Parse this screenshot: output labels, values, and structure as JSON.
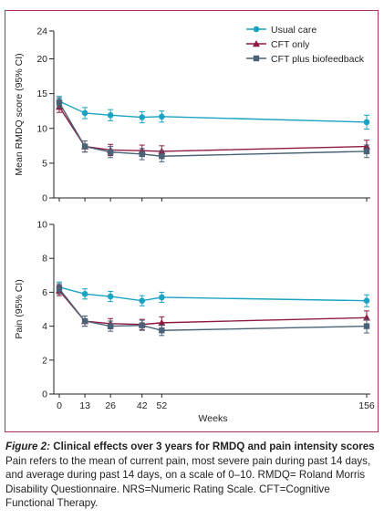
{
  "chart_data": [
    {
      "type": "line",
      "ylabel": "Mean RMDQ score (95% CI)",
      "xlabel": "",
      "x": [
        0,
        13,
        26,
        42,
        52,
        156
      ],
      "x_ticks": [
        "0",
        "13",
        "26",
        "42",
        "52",
        "156"
      ],
      "ylim": [
        0,
        24
      ],
      "yticks": [
        "0",
        "5",
        "10",
        "15",
        "20",
        "24"
      ],
      "legend_position": "top-right",
      "series": [
        {
          "name": "Usual care",
          "color": "#1aa3c2",
          "marker": "circle",
          "values": [
            13.9,
            12.2,
            11.9,
            11.6,
            11.7,
            10.9
          ],
          "ci": [
            [
              13.2,
              14.6
            ],
            [
              11.4,
              13.0
            ],
            [
              11.1,
              12.7
            ],
            [
              10.8,
              12.4
            ],
            [
              10.9,
              12.5
            ],
            [
              9.9,
              11.9
            ]
          ]
        },
        {
          "name": "CFT only",
          "color": "#8f1a40",
          "marker": "triangle",
          "values": [
            13.1,
            7.4,
            6.9,
            6.8,
            6.7,
            7.4
          ],
          "ci": [
            [
              12.3,
              13.9
            ],
            [
              6.6,
              8.2
            ],
            [
              6.1,
              7.7
            ],
            [
              6.0,
              7.6
            ],
            [
              5.9,
              7.5
            ],
            [
              6.5,
              8.3
            ]
          ]
        },
        {
          "name": "CFT plus biofeedback",
          "color": "#4b6276",
          "marker": "square",
          "values": [
            13.7,
            7.4,
            6.6,
            6.3,
            6.0,
            6.7
          ],
          "ci": [
            [
              13.0,
              14.4
            ],
            [
              6.6,
              8.2
            ],
            [
              5.8,
              7.4
            ],
            [
              5.5,
              7.1
            ],
            [
              5.2,
              6.8
            ],
            [
              5.8,
              7.6
            ]
          ]
        }
      ]
    },
    {
      "type": "line",
      "ylabel": "Pain (95% CI)",
      "xlabel": "Weeks",
      "x": [
        0,
        13,
        26,
        42,
        52,
        156
      ],
      "x_ticks": [
        "0",
        "13",
        "26",
        "42",
        "52",
        "156"
      ],
      "ylim": [
        0,
        10
      ],
      "yticks": [
        "0",
        "2",
        "4",
        "6",
        "8",
        "10"
      ],
      "series": [
        {
          "name": "Usual care",
          "color": "#1aa3c2",
          "marker": "circle",
          "values": [
            6.3,
            5.9,
            5.75,
            5.5,
            5.7,
            5.5
          ],
          "ci": [
            [
              6.0,
              6.6
            ],
            [
              5.6,
              6.2
            ],
            [
              5.45,
              6.05
            ],
            [
              5.2,
              5.8
            ],
            [
              5.4,
              6.0
            ],
            [
              5.15,
              5.85
            ]
          ]
        },
        {
          "name": "CFT only",
          "color": "#8f1a40",
          "marker": "triangle",
          "values": [
            6.1,
            4.3,
            4.15,
            4.1,
            4.2,
            4.5
          ],
          "ci": [
            [
              5.8,
              6.4
            ],
            [
              4.0,
              4.6
            ],
            [
              3.85,
              4.45
            ],
            [
              3.8,
              4.4
            ],
            [
              3.85,
              4.55
            ],
            [
              4.1,
              4.9
            ]
          ]
        },
        {
          "name": "CFT plus biofeedback",
          "color": "#4b6276",
          "marker": "square",
          "values": [
            6.2,
            4.3,
            4.0,
            4.05,
            3.75,
            4.0
          ],
          "ci": [
            [
              5.9,
              6.5
            ],
            [
              4.0,
              4.6
            ],
            [
              3.7,
              4.3
            ],
            [
              3.75,
              4.35
            ],
            [
              3.45,
              4.05
            ],
            [
              3.6,
              4.4
            ]
          ]
        }
      ]
    }
  ],
  "caption": {
    "figure_label": "Figure 2:",
    "heading": " Clinical effects over 3 years for RMDQ and pain intensity scores",
    "body": "Pain refers to the mean of current pain, most severe pain during past 14 days, and average during past 14 days, on a scale of 0–10. RMDQ= Roland Morris Disability Questionnaire. NRS=Numeric Rating Scale. CFT=Cognitive Functional Therapy."
  }
}
